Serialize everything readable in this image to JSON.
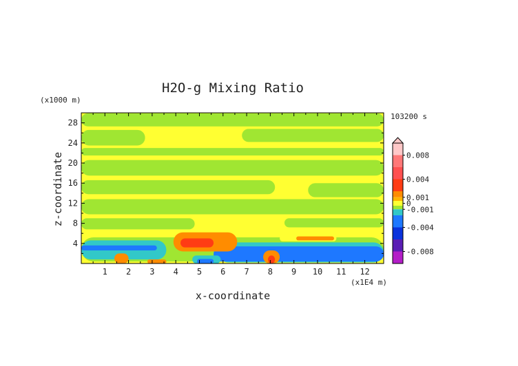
{
  "chart_data": {
    "type": "heatmap",
    "title": "H2O-g Mixing Ratio",
    "xlabel": "x-coordinate",
    "ylabel": "z-coordinate",
    "x_unit_label": "(x1E4 m)",
    "y_unit_label": "(x1000 m)",
    "time_label": "103200 s",
    "xlim": [
      0,
      12.8
    ],
    "ylim": [
      0,
      30
    ],
    "x_ticks": [
      "1",
      "2",
      "3",
      "4",
      "5",
      "6",
      "7",
      "8",
      "9",
      "10",
      "11",
      "12"
    ],
    "x_tick_values": [
      1,
      2,
      3,
      4,
      5,
      6,
      7,
      8,
      9,
      10,
      11,
      12
    ],
    "y_ticks": [
      "4",
      "8",
      "12",
      "16",
      "20",
      "24",
      "28"
    ],
    "y_tick_values": [
      4,
      8,
      12,
      16,
      20,
      24,
      28
    ],
    "colorbar": {
      "range": [
        -0.01,
        0.01
      ],
      "labels": [
        "0.008",
        "0.004",
        "0.001",
        "0",
        "-0.001",
        "-0.004",
        "-0.008"
      ],
      "label_values": [
        0.008,
        0.004,
        0.001,
        0,
        -0.001,
        -0.004,
        -0.008
      ],
      "stops": [
        {
          "v": 0.01,
          "color": "#ffc8c8"
        },
        {
          "v": 0.008,
          "color": "#ff7878"
        },
        {
          "v": 0.006,
          "color": "#ff5050"
        },
        {
          "v": 0.004,
          "color": "#ff3c14"
        },
        {
          "v": 0.002,
          "color": "#ff8c00"
        },
        {
          "v": 0.001,
          "color": "#ffb400"
        },
        {
          "v": 0.0004,
          "color": "#ffff32"
        },
        {
          "v": -0.0004,
          "color": "#a0e632"
        },
        {
          "v": -0.001,
          "color": "#32c8c8"
        },
        {
          "v": -0.002,
          "color": "#1e78ff"
        },
        {
          "v": -0.004,
          "color": "#0a32dc"
        },
        {
          "v": -0.006,
          "color": "#5a1eb4"
        },
        {
          "v": -0.008,
          "color": "#b41ec8"
        },
        {
          "v": -0.01,
          "color": "#ff3cc8"
        }
      ]
    },
    "colors": {
      "yellow": "#ffff32",
      "green": "#a0e632",
      "cyan": "#32c8c8",
      "blue": "#1e78ff",
      "orange": "#ff8c00",
      "red": "#ff3c14"
    },
    "regions": [
      {
        "color": "#a0e632",
        "x": [
          0,
          12.8
        ],
        "y": [
          27.3,
          29.9
        ]
      },
      {
        "color": "#a0e632",
        "x": [
          0,
          2.7
        ],
        "y": [
          23.5,
          26.6
        ]
      },
      {
        "color": "#a0e632",
        "x": [
          6.8,
          12.8
        ],
        "y": [
          24.2,
          26.8
        ]
      },
      {
        "color": "#a0e632",
        "x": [
          0,
          12.8
        ],
        "y": [
          21.5,
          23.0
        ]
      },
      {
        "color": "#a0e632",
        "x": [
          0,
          12.8
        ],
        "y": [
          17.5,
          20.6
        ]
      },
      {
        "color": "#a0e632",
        "x": [
          0,
          8.2
        ],
        "y": [
          13.8,
          16.6
        ]
      },
      {
        "color": "#a0e632",
        "x": [
          9.6,
          12.8
        ],
        "y": [
          13.2,
          16.0
        ]
      },
      {
        "color": "#a0e632",
        "x": [
          0,
          12.8
        ],
        "y": [
          9.8,
          12.8
        ]
      },
      {
        "color": "#a0e632",
        "x": [
          0,
          4.8
        ],
        "y": [
          6.8,
          9.0
        ]
      },
      {
        "color": "#a0e632",
        "x": [
          8.6,
          12.8
        ],
        "y": [
          7.2,
          9.0
        ]
      },
      {
        "color": "#a0e632",
        "x": [
          0,
          12.8
        ],
        "y": [
          0.4,
          5.2
        ]
      },
      {
        "color": "#32c8c8",
        "x": [
          0,
          3.6
        ],
        "y": [
          0.8,
          4.6
        ]
      },
      {
        "color": "#32c8c8",
        "x": [
          5.8,
          12.8
        ],
        "y": [
          0.2,
          4.2
        ]
      },
      {
        "color": "#1e78ff",
        "x": [
          0,
          3.2
        ],
        "y": [
          2.6,
          3.6
        ]
      },
      {
        "color": "#1e78ff",
        "x": [
          5.6,
          12.8
        ],
        "y": [
          0.4,
          3.4
        ]
      },
      {
        "color": "#ffff32",
        "x": [
          8.4,
          10.8
        ],
        "y": [
          4.4,
          5.6
        ]
      },
      {
        "color": "#ff8c00",
        "x": [
          3.9,
          6.6
        ],
        "y": [
          2.4,
          6.2
        ]
      },
      {
        "color": "#ff3c14",
        "x": [
          4.2,
          5.6
        ],
        "y": [
          3.2,
          5.0
        ]
      },
      {
        "color": "#ff8c00",
        "x": [
          9.1,
          10.7
        ],
        "y": [
          4.6,
          5.4
        ]
      },
      {
        "color": "#ff8c00",
        "x": [
          1.4,
          2.0
        ],
        "y": [
          0,
          2.0
        ]
      },
      {
        "color": "#ff8c00",
        "x": [
          7.7,
          8.4
        ],
        "y": [
          0,
          2.6
        ]
      },
      {
        "color": "#ff3c14",
        "x": [
          7.9,
          8.2
        ],
        "y": [
          0,
          1.6
        ]
      },
      {
        "color": "#32c8c8",
        "x": [
          4.7,
          5.9
        ],
        "y": [
          0,
          1.6
        ]
      },
      {
        "color": "#1e78ff",
        "x": [
          4.9,
          5.6
        ],
        "y": [
          0,
          0.9
        ]
      },
      {
        "color": "#ff8c00",
        "x": [
          2.8,
          3.6
        ],
        "y": [
          0,
          0.8
        ]
      }
    ]
  }
}
